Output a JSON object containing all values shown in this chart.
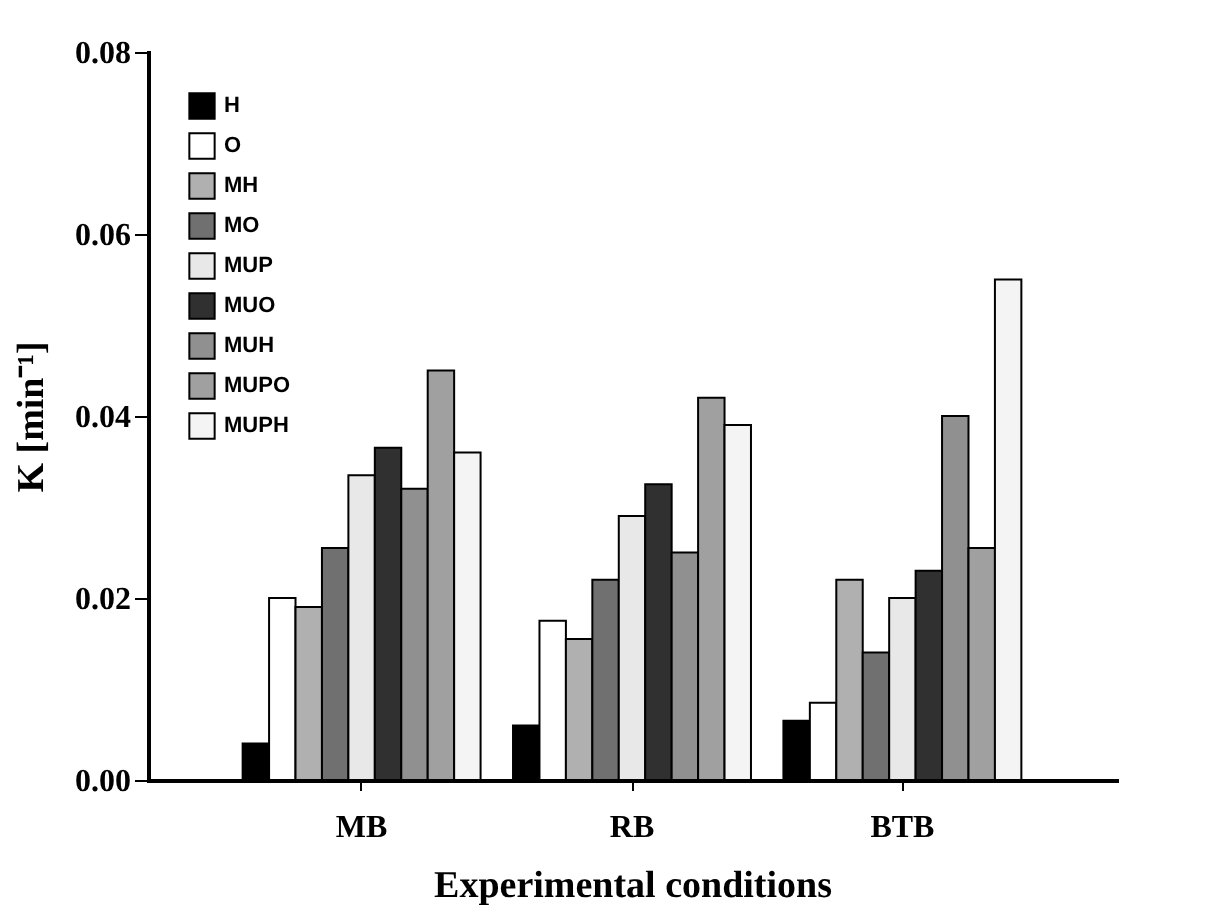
{
  "chart_data": {
    "type": "bar",
    "xlabel": "Experimental conditions",
    "ylabel": "K [min⁻¹]",
    "categories": [
      "MB",
      "RB",
      "BTB"
    ],
    "ylim": [
      0,
      0.08
    ],
    "yticks": [
      {
        "value": 0,
        "label": "0.00"
      },
      {
        "value": 0.02,
        "label": "0.02"
      },
      {
        "value": 0.04,
        "label": "0.04"
      },
      {
        "value": 0.06,
        "label": "0.06"
      },
      {
        "value": 0.08,
        "label": "0.08"
      }
    ],
    "legend": "top left",
    "grid": false,
    "series": [
      {
        "name": "H",
        "color": "#000000",
        "values": [
          0.004,
          0.006,
          0.0065
        ]
      },
      {
        "name": "O",
        "color": "#ffffff",
        "values": [
          0.02,
          0.0175,
          0.0085
        ]
      },
      {
        "name": "MH",
        "color": "#b0b0b0",
        "values": [
          0.019,
          0.0155,
          0.022
        ]
      },
      {
        "name": "MO",
        "color": "#707070",
        "values": [
          0.0255,
          0.022,
          0.014
        ]
      },
      {
        "name": "MUP",
        "color": "#e8e8e8",
        "values": [
          0.0335,
          0.029,
          0.02
        ]
      },
      {
        "name": "MUO",
        "color": "#303030",
        "values": [
          0.0365,
          0.0325,
          0.023
        ]
      },
      {
        "name": "MUH",
        "color": "#909090",
        "values": [
          0.032,
          0.025,
          0.04
        ]
      },
      {
        "name": "MUPO",
        "color": "#a0a0a0",
        "values": [
          0.045,
          0.042,
          0.0255
        ]
      },
      {
        "name": "MUPH",
        "color": "#f4f4f4",
        "values": [
          0.036,
          0.039,
          0.055
        ]
      }
    ]
  }
}
